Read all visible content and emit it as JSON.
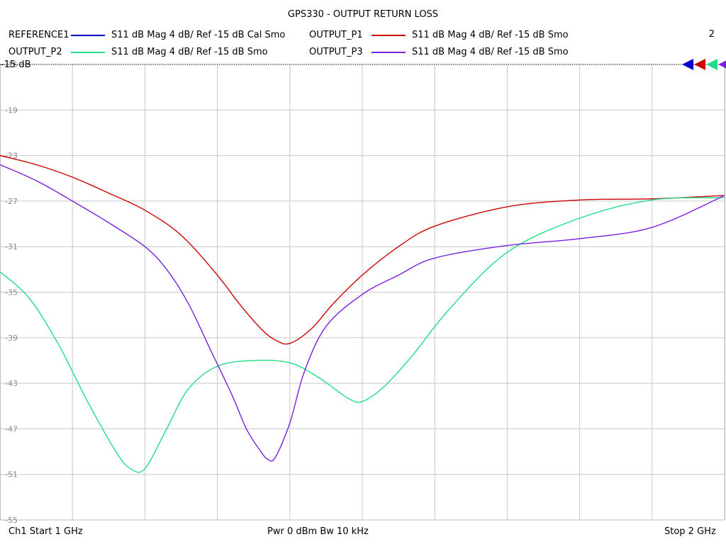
{
  "chart_data": {
    "type": "line",
    "title": "GPS330 - OUTPUT RETURN LOSS",
    "channel_number": "2",
    "reference_label": "-15 dB",
    "ylim": [
      -55,
      -15
    ],
    "xlim": [
      1.0,
      2.0
    ],
    "y_ticks": [
      "-15",
      "-19",
      "-23",
      "-27",
      "-31",
      "-35",
      "-39",
      "-43",
      "-47",
      "-51",
      "-55"
    ],
    "grid": true,
    "legend_placement": "top",
    "series": [
      {
        "name": "REFERENCE1",
        "description": "S11  dB Mag  4 dB/ Ref -15 dB  Cal Smo",
        "color": "#0000cc",
        "x": [],
        "y": []
      },
      {
        "name": "OUTPUT_P1",
        "description": "S11  dB Mag  4 dB/ Ref -15 dB  Smo",
        "color": "#cc0000",
        "x": [
          1.0,
          1.05,
          1.1,
          1.15,
          1.2,
          1.25,
          1.3,
          1.33,
          1.36,
          1.38,
          1.4,
          1.43,
          1.46,
          1.5,
          1.55,
          1.6,
          1.7,
          1.8,
          1.9,
          2.0
        ],
        "y": [
          -23.0,
          -23.8,
          -24.9,
          -26.3,
          -27.8,
          -30.0,
          -33.5,
          -36.0,
          -38.2,
          -39.2,
          -39.5,
          -38.2,
          -36.0,
          -33.5,
          -31.0,
          -29.2,
          -27.5,
          -26.9,
          -26.8,
          -26.5
        ]
      },
      {
        "name": "OUTPUT_P2",
        "description": "S11  dB Mag  4 dB/ Ref -15 dB  Smo",
        "color": "#22dd88",
        "x": [
          1.0,
          1.04,
          1.08,
          1.12,
          1.16,
          1.18,
          1.2,
          1.23,
          1.26,
          1.3,
          1.35,
          1.4,
          1.44,
          1.48,
          1.5,
          1.53,
          1.57,
          1.62,
          1.7,
          1.8,
          1.9,
          2.0
        ],
        "y": [
          -33.2,
          -35.5,
          -39.5,
          -44.5,
          -49.0,
          -50.5,
          -50.5,
          -47.0,
          -43.5,
          -41.5,
          -41.0,
          -41.2,
          -42.5,
          -44.3,
          -44.6,
          -43.3,
          -40.5,
          -36.5,
          -31.5,
          -28.5,
          -26.9,
          -26.7
        ]
      },
      {
        "name": "OUTPUT_P3",
        "description": "S11  dB Mag  4 dB/ Ref -15 dB  Smo",
        "color": "#7722dd",
        "x": [
          1.0,
          1.05,
          1.1,
          1.15,
          1.2,
          1.23,
          1.26,
          1.29,
          1.32,
          1.34,
          1.36,
          1.37,
          1.38,
          1.4,
          1.42,
          1.45,
          1.5,
          1.55,
          1.6,
          1.7,
          1.8,
          1.9,
          2.0
        ],
        "y": [
          -23.8,
          -25.2,
          -27.0,
          -28.9,
          -31.0,
          -33.0,
          -36.0,
          -40.0,
          -44.0,
          -47.0,
          -49.0,
          -49.7,
          -49.5,
          -46.5,
          -42.0,
          -38.0,
          -35.2,
          -33.5,
          -32.0,
          -30.9,
          -30.3,
          -29.3,
          -26.5
        ]
      }
    ],
    "footer": {
      "left": "Ch1  Start  1 GHz",
      "center": "Pwr  0 dBm  Bw  10 kHz",
      "right": "Stop  2 GHz"
    }
  }
}
